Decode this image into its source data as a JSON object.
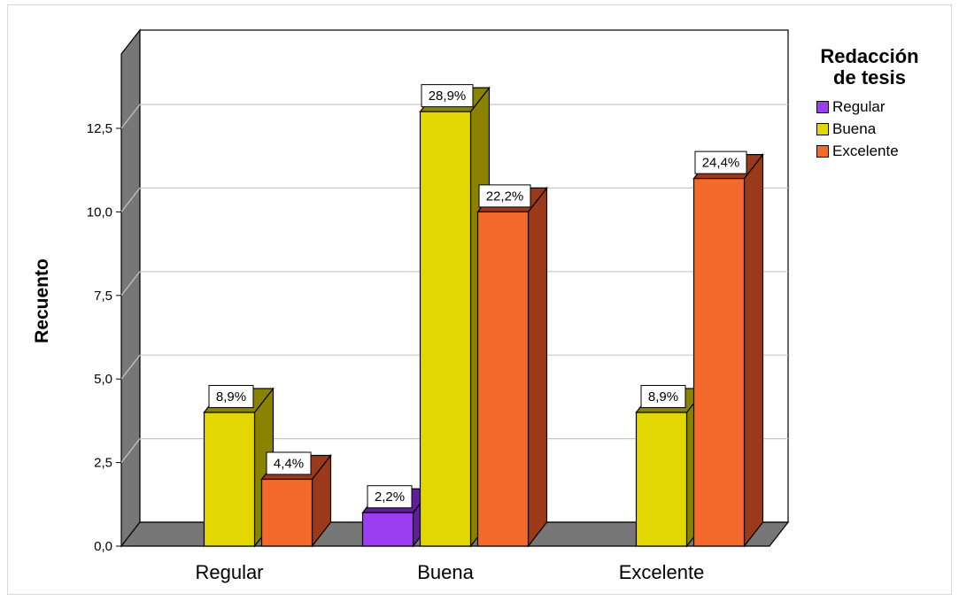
{
  "chart_data": {
    "type": "bar",
    "title": "",
    "xlabel": "",
    "ylabel": "Recuento",
    "ylim": [
      0,
      14
    ],
    "yticks": [
      "0,0",
      "2,5",
      "5,0",
      "7,5",
      "10,0",
      "12,5"
    ],
    "grid": true,
    "legend_title": "Redacción de tesis",
    "legend_title_lines": [
      "Redacción",
      "de tesis"
    ],
    "legend_position": "right",
    "categories": [
      "Regular",
      "Buena",
      "Excelente"
    ],
    "series": [
      {
        "name": "Regular",
        "color": "#9b3df0",
        "side_color": "#5e1f99",
        "values": [
          0,
          1,
          0
        ],
        "labels": [
          "",
          "2,2%",
          ""
        ]
      },
      {
        "name": "Buena",
        "color": "#e3d700",
        "side_color": "#8a8300",
        "values": [
          4,
          13,
          4
        ],
        "labels": [
          "8,9%",
          "28,9%",
          "8,9%"
        ]
      },
      {
        "name": "Excelente",
        "color": "#f46a2d",
        "side_color": "#9a3a1b",
        "values": [
          2,
          10,
          11
        ],
        "labels": [
          "4,4%",
          "22,2%",
          "24,4%"
        ]
      }
    ]
  }
}
